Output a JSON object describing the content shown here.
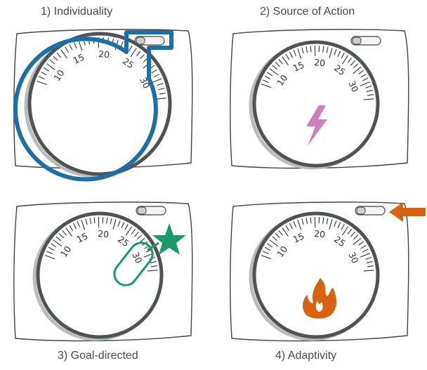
{
  "panels": [
    {
      "title": "1) Individuality",
      "highlight": "outline",
      "accent": "#1b6fa8"
    },
    {
      "title": "2) Source of Action",
      "highlight": "lightning",
      "accent": "#cc7fb8"
    },
    {
      "title": "3) Goal-directed",
      "highlight": "star",
      "accent": "#1a9a6c"
    },
    {
      "title": "4) Adaptivity",
      "highlight": "flame",
      "accent": "#d9620f"
    }
  ],
  "dial_scale": [
    "10",
    "15",
    "20",
    "25",
    "30"
  ],
  "colors": {
    "dial": "#4d5454",
    "box": "#444444",
    "text": "#4a4a4a"
  }
}
